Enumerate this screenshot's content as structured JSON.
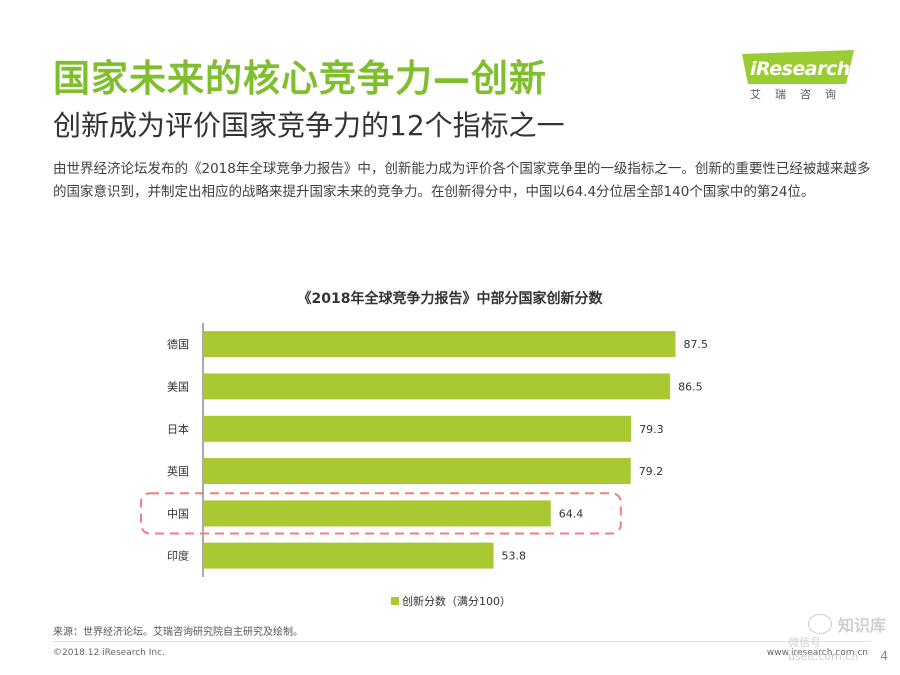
{
  "title": "国家未来的核心竞争力—创新",
  "subtitle": "创新成为评价国家竞争力的12个指标之一",
  "intro": "由世界经济论坛发布的《2018年全球竞争力报告》中，创新能力成为评价各个国家竞争里的一级指标之一。创新的重要性已经被越来越多的国家意识到，并制定出相应的战略来提升国家未来的竞争力。在创新得分中，中国以64.4分位居全部140个国家中的第24位。",
  "logo": {
    "brand": "iResearch",
    "cn": "艾瑞咨询"
  },
  "chart_data": {
    "type": "bar",
    "orientation": "horizontal",
    "title": "《2018年全球竞争力报告》中部分国家创新分数",
    "categories": [
      "德国",
      "美国",
      "日本",
      "英国",
      "中国",
      "印度"
    ],
    "values": [
      87.5,
      86.5,
      79.3,
      79.2,
      64.4,
      53.8
    ],
    "series_name": "创新分数（满分100）",
    "xlim": [
      0,
      100
    ],
    "highlighted_category": "中国",
    "legend_position": "bottom",
    "color": "#a8c932"
  },
  "source": "来源：世界经济论坛。艾瑞咨询研究院自主研究及绘制。",
  "copyright": "©2018.12 iResearch Inc.",
  "website": "www.iresearch.com.cn",
  "page_number": "4",
  "watermark": {
    "line1": "知识库",
    "line2": "微信号 useit.com.cn"
  },
  "colors": {
    "accent": "#7fbe2c",
    "bar": "#a8c932",
    "highlight_box": "#f08080"
  }
}
